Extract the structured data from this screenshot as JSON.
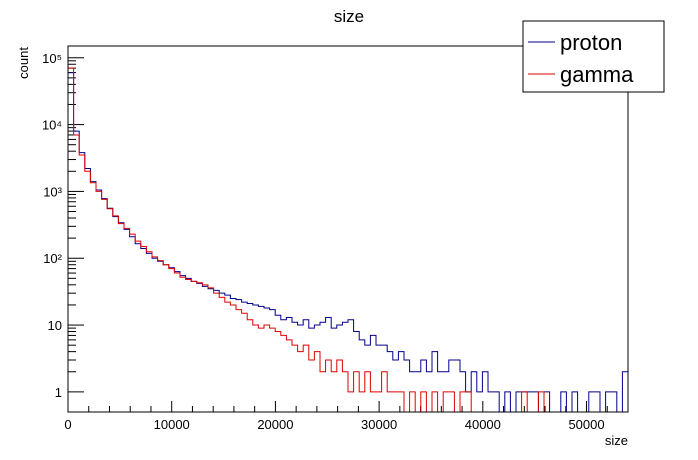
{
  "chart_data": {
    "type": "line",
    "title": "size",
    "xlabel": "size",
    "ylabel": "count",
    "xlim": [
      0,
      54000
    ],
    "ylim": [
      0.5,
      150000
    ],
    "yscale": "log",
    "grid": false,
    "legend_position": "top-right",
    "x_ticks": [
      0,
      10000,
      20000,
      30000,
      40000,
      50000
    ],
    "x_tick_labels": [
      "0",
      "10000",
      "20000",
      "30000",
      "40000",
      "50000"
    ],
    "y_ticks": [
      1,
      10,
      100,
      1000,
      10000,
      100000
    ],
    "y_tick_labels": [
      "1",
      "10",
      "10²",
      "10³",
      "10⁴",
      "10⁵"
    ],
    "bin_width": 540,
    "series": [
      {
        "name": "proton",
        "color": "#00008b",
        "x": [
          0,
          540,
          1080,
          1620,
          2160,
          2700,
          3240,
          3780,
          4320,
          4860,
          5400,
          5940,
          6480,
          7020,
          7560,
          8100,
          8640,
          9180,
          9720,
          10260,
          10800,
          11340,
          11880,
          12420,
          12960,
          13500,
          14040,
          14580,
          15120,
          15660,
          16200,
          16740,
          17280,
          17820,
          18360,
          18900,
          19440,
          19980,
          20520,
          21060,
          21600,
          22140,
          22680,
          23220,
          23760,
          24300,
          24840,
          25380,
          25920,
          26460,
          27000,
          27540,
          28080,
          28620,
          29160,
          29700,
          30240,
          30780,
          31320,
          31860,
          32400,
          32940,
          33480,
          34020,
          34560,
          35100,
          35640,
          36180,
          36720,
          37260,
          37800,
          38340,
          38880,
          39420,
          39960,
          40500,
          41040,
          41580,
          42120,
          42660,
          43200,
          43740,
          44280,
          44820,
          45360,
          45900,
          46440,
          46980,
          47520,
          48060,
          48600,
          49140,
          49680,
          50220,
          50760,
          51300,
          51840,
          52380,
          52920,
          53460
        ],
        "values": [
          60000,
          8000,
          3800,
          2200,
          1400,
          1050,
          780,
          560,
          420,
          340,
          270,
          210,
          165,
          140,
          118,
          100,
          90,
          80,
          72,
          63,
          55,
          50,
          45,
          42,
          38,
          35,
          33,
          30,
          28,
          25,
          24,
          22,
          21,
          20,
          19,
          18,
          17,
          14,
          12,
          13,
          11,
          10,
          12,
          9,
          10,
          11,
          13,
          9,
          10,
          11,
          12,
          8,
          6,
          5,
          7,
          5,
          5,
          4,
          3,
          4,
          3,
          2,
          2,
          3,
          2,
          4,
          2,
          2,
          3,
          3,
          2,
          1,
          2,
          1,
          2,
          1,
          1,
          0,
          1,
          0,
          1,
          1,
          1,
          1,
          0,
          1,
          0,
          0,
          1,
          0,
          1,
          0,
          0,
          1,
          1,
          0,
          1,
          1,
          0,
          2
        ]
      },
      {
        "name": "gamma",
        "color": "#e00000",
        "x": [
          0,
          540,
          1080,
          1620,
          2160,
          2700,
          3240,
          3780,
          4320,
          4860,
          5400,
          5940,
          6480,
          7020,
          7560,
          8100,
          8640,
          9180,
          9720,
          10260,
          10800,
          11340,
          11880,
          12420,
          12960,
          13500,
          14040,
          14580,
          15120,
          15660,
          16200,
          16740,
          17280,
          17820,
          18360,
          18900,
          19440,
          19980,
          20520,
          21060,
          21600,
          22140,
          22680,
          23220,
          23760,
          24300,
          24840,
          25380,
          25920,
          26460,
          27000,
          27540,
          28080,
          28620,
          29160,
          29700,
          30240,
          30780,
          31320,
          31860,
          32400,
          32940,
          33480,
          34020,
          34560,
          35100,
          35640,
          36180,
          36720,
          37260,
          37800,
          38340,
          38880,
          39420,
          39960,
          40500,
          41040,
          41580,
          42120,
          42660,
          43200,
          43740,
          44280,
          44820,
          45360,
          45900,
          46440,
          46980,
          47520,
          48060,
          48600,
          49140,
          49680,
          50220,
          50760,
          51300,
          51840,
          52380,
          52920,
          53460
        ],
        "values": [
          70000,
          7000,
          3500,
          2000,
          1350,
          1000,
          760,
          550,
          430,
          330,
          280,
          230,
          180,
          150,
          125,
          105,
          92,
          80,
          70,
          60,
          52,
          48,
          45,
          43,
          40,
          36,
          30,
          26,
          22,
          20,
          17,
          15,
          12,
          10,
          9,
          10,
          9,
          8,
          7,
          6,
          5,
          4,
          5,
          3,
          4,
          2,
          3,
          2,
          3,
          2,
          1,
          2,
          1,
          2,
          1,
          1,
          2,
          1,
          1,
          1,
          0,
          1,
          0,
          1,
          0,
          1,
          0,
          1,
          1,
          0,
          1,
          1,
          0,
          0,
          0,
          0,
          0,
          0,
          0,
          0,
          0,
          1,
          0,
          0,
          1,
          0,
          0,
          0,
          0,
          0,
          0,
          0,
          0,
          0,
          0,
          0,
          0,
          0,
          0,
          0
        ]
      }
    ]
  }
}
